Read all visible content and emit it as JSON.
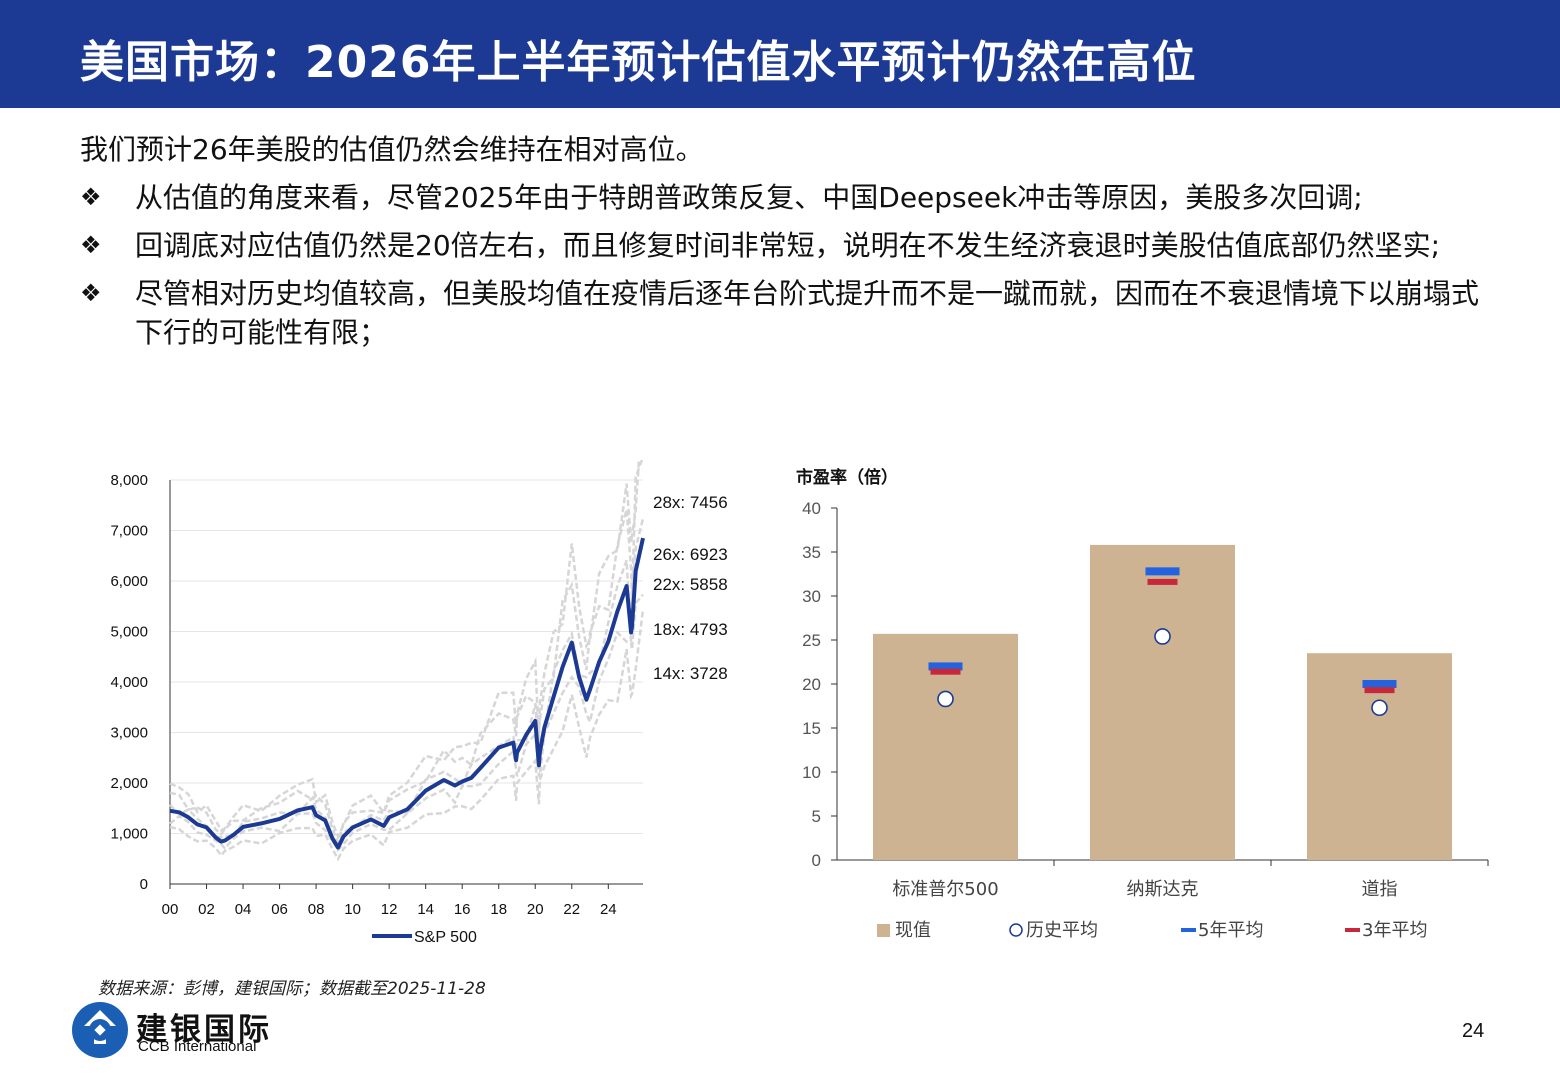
{
  "header": {
    "title": "美国市场：2026年上半年预计估值水平预计仍然在高位"
  },
  "intro": "我们预计26年美股的估值仍然会维持在相对高位。",
  "bullets": [
    "从估值的角度来看，尽管2025年由于特朗普政策反复、中国Deepseek冲击等原因，美股多次回调;",
    "回调底对应估值仍然是20倍左右，而且修复时间非常短，说明在不发生经济衰退时美股估值底部仍然坚实;",
    "尽管相对历史均值较高，但美股均值在疫情后逐年台阶式提升而不是一蹴而就，因而在不衰退情境下以崩塌式下行的可能性有限；"
  ],
  "bullet_marker": "❖",
  "source": "数据来源：彭博，建银国际；数据截至2025-11-28",
  "footer": {
    "logo_cn": "建银国际",
    "logo_en": "CCB International",
    "page_number": "24"
  },
  "colors": {
    "header": "#1c3a94",
    "sp500": "#1c3a94",
    "bands": "#d6d6d6",
    "bar": "#cdb391",
    "avg5": "#2463e0",
    "avg3": "#c8283c"
  },
  "chart_data": [
    {
      "type": "line",
      "title": "",
      "xlabel": "",
      "ylabel": "",
      "xlim": [
        2000,
        2025.9
      ],
      "ylim": [
        0,
        8000
      ],
      "yticks": [
        "0",
        "1,000",
        "2,000",
        "3,000",
        "4,000",
        "5,000",
        "6,000",
        "7,000",
        "8,000"
      ],
      "xticks": [
        "00",
        "02",
        "04",
        "06",
        "08",
        "10",
        "12",
        "14",
        "16",
        "18",
        "20",
        "22",
        "24"
      ],
      "legend": "bottom",
      "series": [
        {
          "name": "S&P 500",
          "x": [
            2000,
            2000.5,
            2001,
            2001.5,
            2002,
            2002.5,
            2002.8,
            2003,
            2003.5,
            2004,
            2005,
            2006,
            2007,
            2007.8,
            2008,
            2008.5,
            2008.9,
            2009.2,
            2009.5,
            2010,
            2011,
            2011.7,
            2012,
            2013,
            2014,
            2015,
            2015.6,
            2016,
            2016.5,
            2017,
            2018,
            2018.8,
            2018.95,
            2019,
            2019.5,
            2020,
            2020.2,
            2020.25,
            2020.5,
            2021,
            2021.5,
            2022,
            2022.4,
            2022.8,
            2023,
            2023.5,
            2024,
            2024.5,
            2025,
            2025.25,
            2025.3,
            2025.5,
            2025.9
          ],
          "y": [
            1450,
            1420,
            1320,
            1180,
            1120,
            920,
            840,
            860,
            980,
            1130,
            1200,
            1290,
            1460,
            1520,
            1360,
            1260,
            900,
            720,
            940,
            1120,
            1280,
            1150,
            1320,
            1480,
            1850,
            2060,
            1950,
            2030,
            2100,
            2300,
            2700,
            2800,
            2450,
            2600,
            2950,
            3230,
            2350,
            2600,
            3100,
            3700,
            4300,
            4780,
            4100,
            3650,
            3850,
            4400,
            4800,
            5400,
            5900,
            4980,
            5100,
            6200,
            6850
          ]
        },
        {
          "name": "",
          "label": "28x: 7456",
          "value": 7456
        },
        {
          "name": "",
          "label": "26x: 6923",
          "value": 6923
        },
        {
          "name": "",
          "label": "22x: 5858",
          "value": 5858
        },
        {
          "name": "",
          "label": "18x: 4793",
          "value": 4793
        },
        {
          "name": "",
          "label": "14x: 3728",
          "value": 3728
        }
      ]
    },
    {
      "type": "bar",
      "title": "市盈率（倍）",
      "categories": [
        "标准普尔500",
        "纳斯达克",
        "道指"
      ],
      "ylim": [
        0,
        40
      ],
      "yticks": [
        "0",
        "5",
        "10",
        "15",
        "20",
        "25",
        "30",
        "35",
        "40"
      ],
      "legend": "bottom",
      "series": [
        {
          "name": "现值",
          "values": [
            25.7,
            35.8,
            23.5
          ]
        },
        {
          "name": "历史平均",
          "values": [
            18.3,
            25.4,
            17.3
          ]
        },
        {
          "name": "5年平均",
          "values": [
            22.0,
            32.8,
            20.0
          ]
        },
        {
          "name": "3年平均",
          "values": [
            21.4,
            31.6,
            19.3
          ]
        }
      ]
    }
  ]
}
